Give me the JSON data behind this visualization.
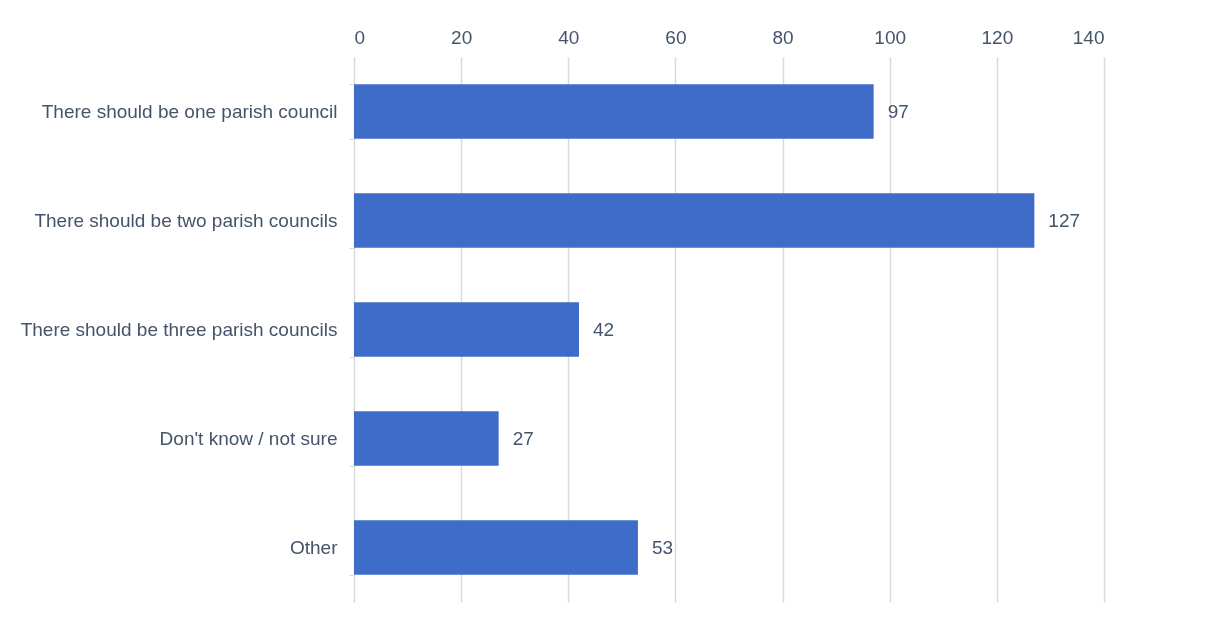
{
  "chart_data": {
    "type": "bar",
    "orientation": "horizontal",
    "categories": [
      "There should be one parish council",
      "There should be two parish councils",
      "There should be three parish councils",
      "Don't know / not sure",
      "Other"
    ],
    "values": [
      97,
      127,
      42,
      27,
      53
    ],
    "color": "#3f6cc8",
    "xlim": [
      0,
      140
    ],
    "xticks": [
      0,
      20,
      40,
      60,
      80,
      100,
      120,
      140
    ],
    "grid": "x",
    "data_labels": true
  }
}
